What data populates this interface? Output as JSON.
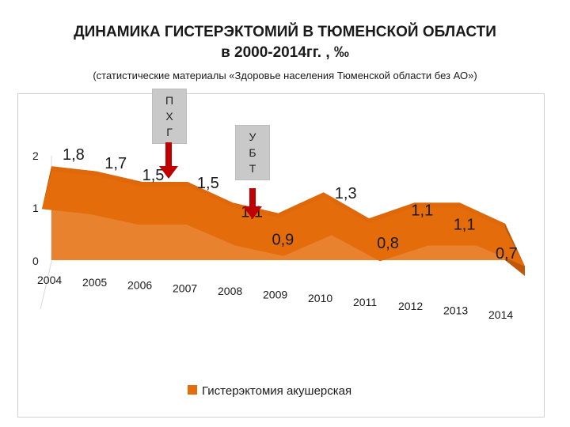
{
  "title": {
    "line1": "ДИНАМИКА ГИСТЕРЭКТОМИЙ В ТЮМЕНСКОЙ ОБЛАСТИ",
    "line2": "в 2000-2014гг. , ‰"
  },
  "subtitle": "(статистические материалы «Здоровье населения Тюменской области без АО»)",
  "callouts": {
    "pxg": [
      "П",
      "Х",
      "Г"
    ],
    "ubt": [
      "У",
      "Б",
      "Т"
    ]
  },
  "colors": {
    "area_front": "#e46c0a",
    "area_top": "#c0580a",
    "arrow": "#c00000",
    "callout_bg": "#c9c9c9"
  },
  "chart_data": {
    "type": "area",
    "categories": [
      "2004",
      "2005",
      "2006",
      "2007",
      "2008",
      "2009",
      "2010",
      "2011",
      "2012",
      "2013",
      "2014"
    ],
    "series": [
      {
        "name": "Гистерэктомия акушерская",
        "values": [
          1.8,
          1.7,
          1.5,
          1.5,
          1.1,
          0.9,
          1.3,
          0.8,
          1.1,
          1.1,
          0.7
        ],
        "labels": [
          "1,8",
          "1,7",
          "1,5",
          "1,5",
          "1,1",
          "0,9",
          "1,3",
          "0,8",
          "1,1",
          "1,1",
          "0,7"
        ]
      }
    ],
    "y_ticks": [
      "0",
      "1",
      "2"
    ],
    "ylim": [
      0,
      2
    ],
    "legend_position": "bottom",
    "grid": false
  }
}
